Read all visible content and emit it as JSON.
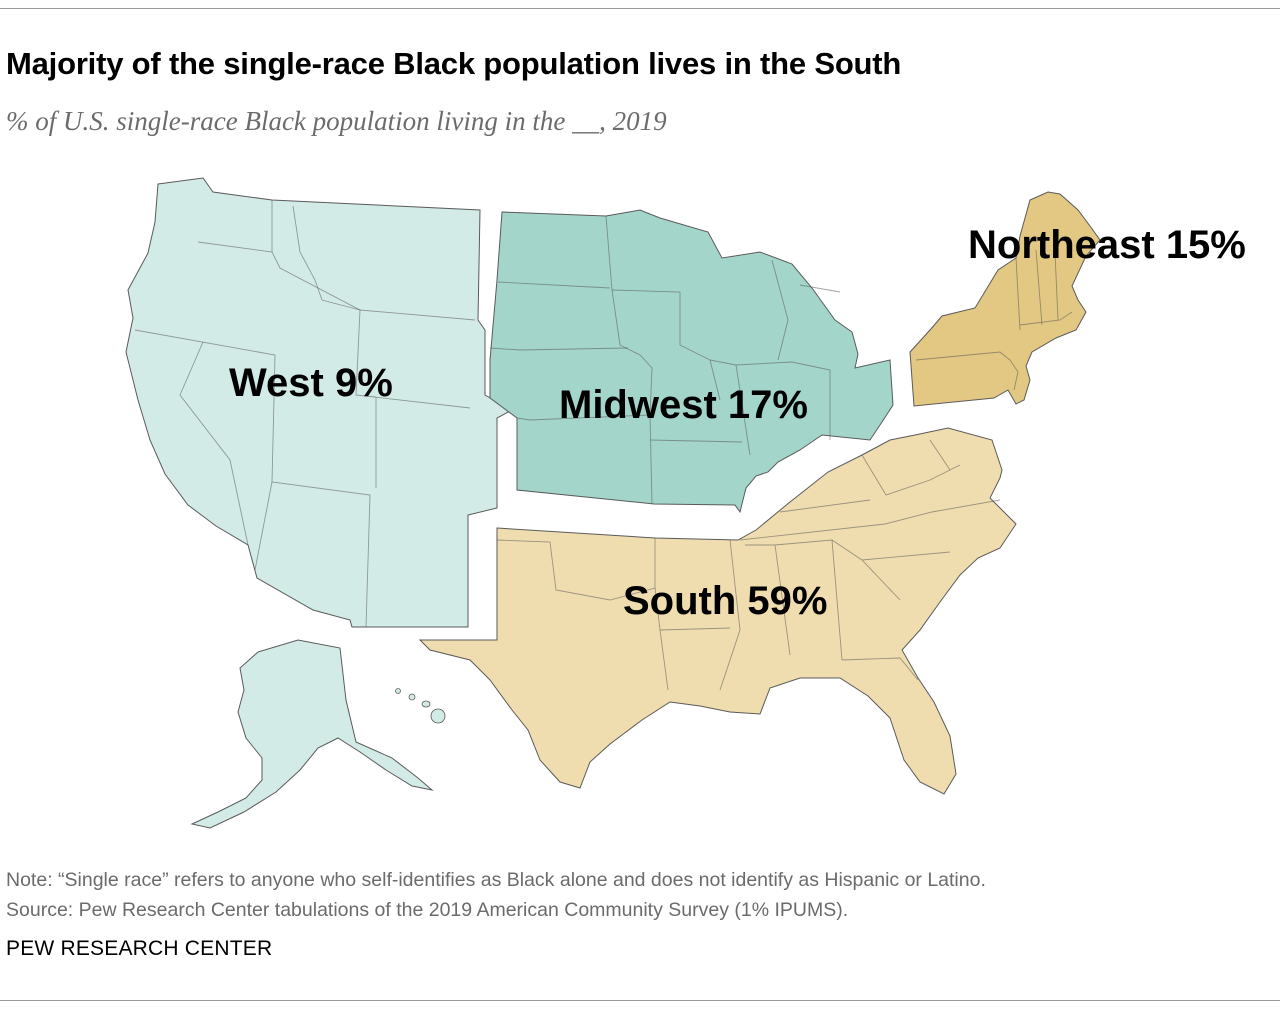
{
  "title": "Majority of the single-race Black population lives in the South",
  "subtitle": "% of U.S. single-race Black population living in the __, 2019",
  "regions": [
    {
      "name": "West",
      "value": "9%",
      "color": "#d3ebe6"
    },
    {
      "name": "Midwest",
      "value": "17%",
      "color": "#a3d5ca"
    },
    {
      "name": "South",
      "value": "59%",
      "color": "#efddaf"
    },
    {
      "name": "Northeast",
      "value": "15%",
      "color": "#e3c883"
    }
  ],
  "labels": {
    "west": "West 9%",
    "midwest": "Midwest 17%",
    "south": "South 59%",
    "northeast": "Northeast 15%"
  },
  "note": "Note: “Single race” refers to anyone who self-identifies as Black alone and does not identify as Hispanic or Latino.",
  "source": "Source: Pew Research Center tabulations of the 2019 American Community Survey (1% IPUMS).",
  "brand": "PEW RESEARCH CENTER"
}
